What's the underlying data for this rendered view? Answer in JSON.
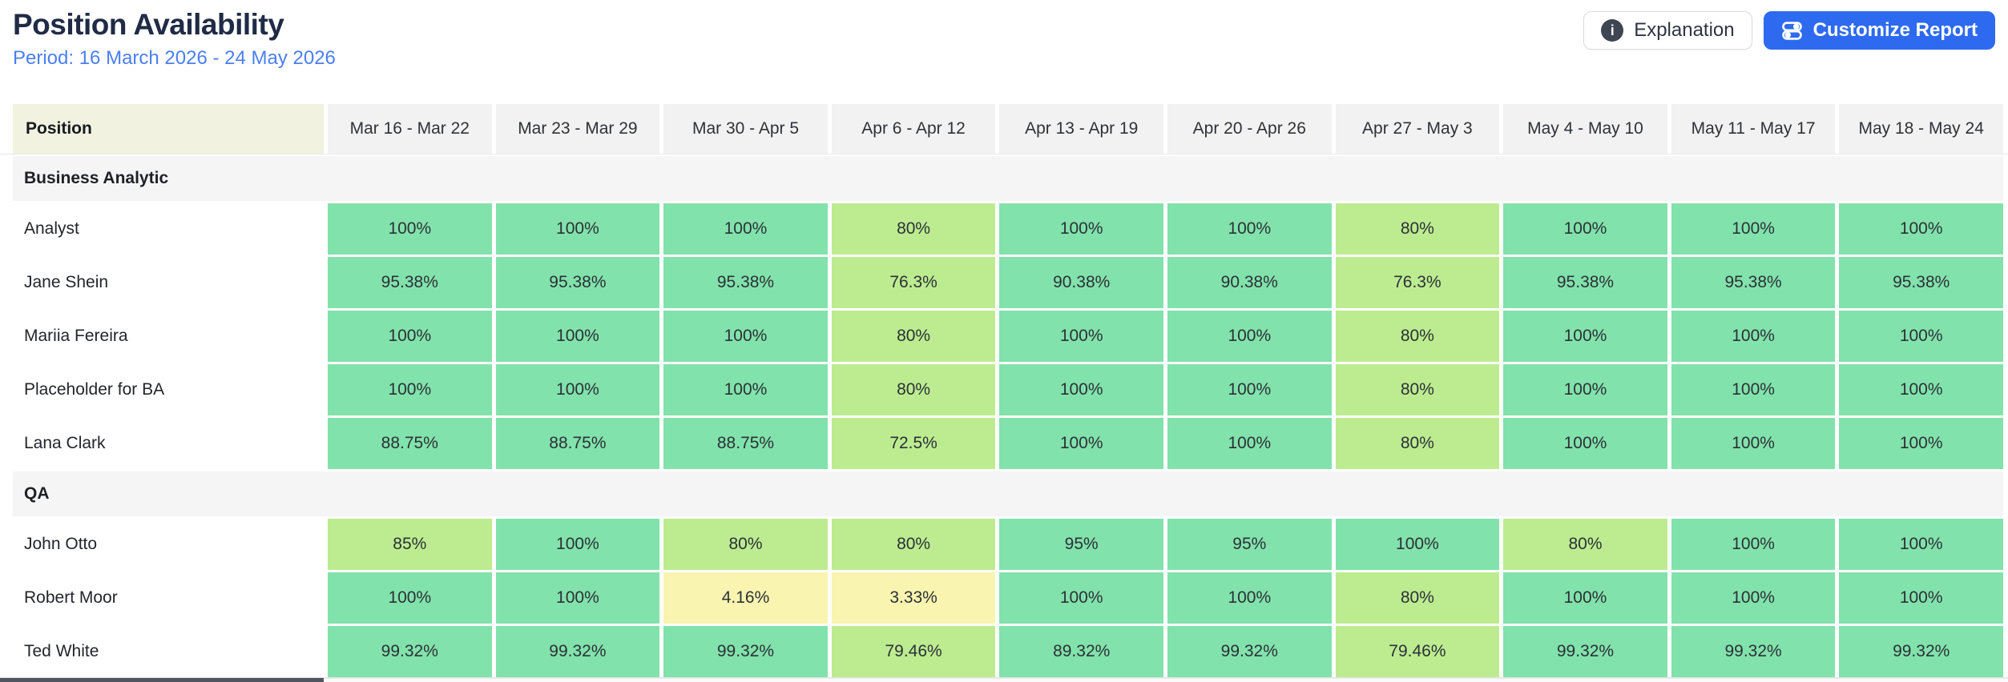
{
  "header": {
    "title": "Position Availability",
    "period": "Period: 16 March 2026 - 24 May 2026",
    "explanation_label": "Explanation",
    "customize_label": "Customize Report",
    "icons": {
      "explanation": "info-circle-icon",
      "customize": "sliders-toggles-icon"
    }
  },
  "table": {
    "position_header": "Position",
    "week_headers": [
      "Mar 16 - Mar 22",
      "Mar 23 - Mar 29",
      "Mar 30 - Apr 5",
      "Apr 6 - Apr 12",
      "Apr 13 - Apr 19",
      "Apr 20 - Apr 26",
      "Apr 27 - May 3",
      "May 4 - May 10",
      "May 11 - May 17",
      "May 18 - May 24"
    ],
    "groups": [
      {
        "name": "Business Analytic",
        "rows": [
          {
            "name": "Analyst",
            "values": [
              "100%",
              "100%",
              "100%",
              "80%",
              "100%",
              "100%",
              "80%",
              "100%",
              "100%",
              "100%"
            ]
          },
          {
            "name": "Jane Shein",
            "values": [
              "95.38%",
              "95.38%",
              "95.38%",
              "76.3%",
              "90.38%",
              "90.38%",
              "76.3%",
              "95.38%",
              "95.38%",
              "95.38%"
            ]
          },
          {
            "name": "Mariia Fereira",
            "values": [
              "100%",
              "100%",
              "100%",
              "80%",
              "100%",
              "100%",
              "80%",
              "100%",
              "100%",
              "100%"
            ]
          },
          {
            "name": "Placeholder for BA",
            "values": [
              "100%",
              "100%",
              "100%",
              "80%",
              "100%",
              "100%",
              "80%",
              "100%",
              "100%",
              "100%"
            ]
          },
          {
            "name": "Lana Clark",
            "values": [
              "88.75%",
              "88.75%",
              "88.75%",
              "72.5%",
              "100%",
              "100%",
              "80%",
              "100%",
              "100%",
              "100%"
            ]
          }
        ]
      },
      {
        "name": "QA",
        "rows": [
          {
            "name": "John Otto",
            "values": [
              "85%",
              "100%",
              "80%",
              "80%",
              "95%",
              "95%",
              "100%",
              "80%",
              "100%",
              "100%"
            ]
          },
          {
            "name": "Robert Moor",
            "values": [
              "100%",
              "100%",
              "4.16%",
              "3.33%",
              "100%",
              "100%",
              "80%",
              "100%",
              "100%",
              "100%"
            ]
          },
          {
            "name": "Ted White",
            "values": [
              "99.32%",
              "99.32%",
              "99.32%",
              "79.46%",
              "89.32%",
              "99.32%",
              "79.46%",
              "99.32%",
              "99.32%",
              "99.32%"
            ]
          }
        ]
      }
    ]
  },
  "colors": {
    "available_green": "#82e2ab",
    "partial_green": "#bdec90",
    "low_yellow": "#f9f4af",
    "primary_blue": "#2e6af0",
    "period_blue": "#4b7ff2",
    "title_navy": "#202b46",
    "position_header_bg": "#f1f2df",
    "week_header_bg": "#f2f2f3",
    "group_row_bg": "#f5f5f6"
  }
}
